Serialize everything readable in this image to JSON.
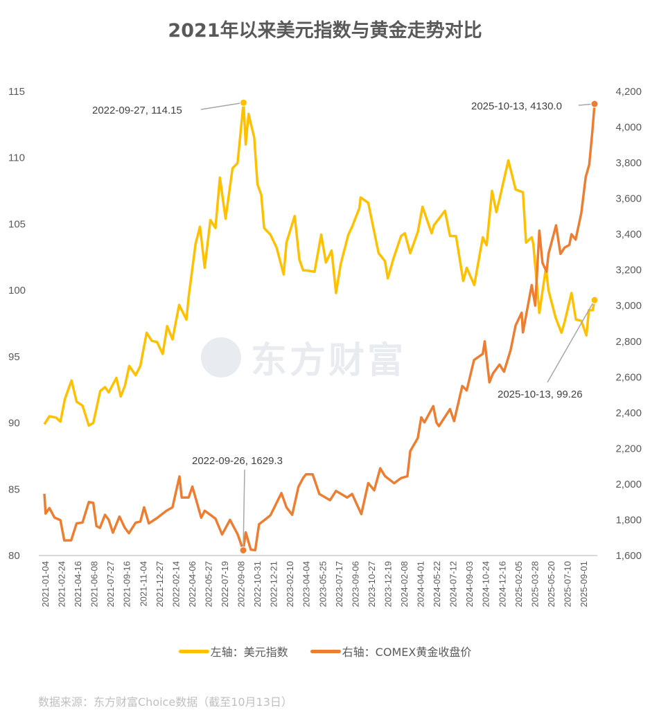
{
  "chart_data": {
    "type": "line",
    "title": "2021年以来美元指数与黄金走势对比",
    "source": "数据来源：东方财富Choice数据（截至10月13日）",
    "watermark": "东方财富",
    "colors": {
      "dxy": "#FFC000",
      "gold": "#ED7D31",
      "axis": "#d9d9d9"
    },
    "left_axis": {
      "ylim": [
        80,
        115
      ],
      "ticks": [
        "80",
        "85",
        "90",
        "95",
        "100",
        "105",
        "110",
        "115"
      ]
    },
    "right_axis": {
      "ylim": [
        1600,
        4200
      ],
      "ticks": [
        "1,600",
        "1,800",
        "2,000",
        "2,200",
        "2,400",
        "2,600",
        "2,800",
        "3,000",
        "3,200",
        "3,400",
        "3,600",
        "3,800",
        "4,000",
        "4,200"
      ]
    },
    "x_range": [
      "2021-01-04",
      "2025-10-13"
    ],
    "x_tick_labels": [
      "2021-01-04",
      "2021-02-24",
      "2021-04-16",
      "2021-06-08",
      "2021-07-27",
      "2021-09-16",
      "2021-11-04",
      "2021-12-27",
      "2022-02-14",
      "2022-04-06",
      "2022-05-27",
      "2022-07-19",
      "2022-09-08",
      "2022-10-31",
      "2022-12-21",
      "2023-02-10",
      "2023-04-04",
      "2023-05-25",
      "2023-07-17",
      "2023-09-06",
      "2023-10-27",
      "2023-12-19",
      "2024-02-08",
      "2024-04-01",
      "2024-05-22",
      "2024-07-12",
      "2024-09-03",
      "2024-10-24",
      "2024-12-16",
      "2025-02-05",
      "2025-03-28",
      "2025-05-20",
      "2025-07-10",
      "2025-09-01"
    ],
    "legend": [
      {
        "label": "左轴：美元指数",
        "color": "#FFC000"
      },
      {
        "label": "右轴：COMEX黄金收盘价",
        "color": "#ED7D31"
      }
    ],
    "series": [
      {
        "name": "美元指数",
        "axis": "left",
        "points": [
          [
            "2021-01-04",
            89.9
          ],
          [
            "2021-01-20",
            90.5
          ],
          [
            "2021-02-10",
            90.4
          ],
          [
            "2021-02-24",
            90.1
          ],
          [
            "2021-03-10",
            91.8
          ],
          [
            "2021-03-31",
            93.2
          ],
          [
            "2021-04-16",
            91.6
          ],
          [
            "2021-05-05",
            91.3
          ],
          [
            "2021-05-25",
            89.8
          ],
          [
            "2021-06-08",
            90.0
          ],
          [
            "2021-06-30",
            92.4
          ],
          [
            "2021-07-15",
            92.7
          ],
          [
            "2021-07-27",
            92.3
          ],
          [
            "2021-08-20",
            93.4
          ],
          [
            "2021-09-03",
            92.0
          ],
          [
            "2021-09-16",
            92.8
          ],
          [
            "2021-09-30",
            94.3
          ],
          [
            "2021-10-20",
            93.6
          ],
          [
            "2021-11-04",
            94.3
          ],
          [
            "2021-11-24",
            96.8
          ],
          [
            "2021-12-10",
            96.2
          ],
          [
            "2021-12-27",
            96.1
          ],
          [
            "2022-01-14",
            95.2
          ],
          [
            "2022-01-28",
            97.3
          ],
          [
            "2022-02-14",
            96.3
          ],
          [
            "2022-03-07",
            98.9
          ],
          [
            "2022-03-30",
            97.8
          ],
          [
            "2022-04-06",
            99.5
          ],
          [
            "2022-04-28",
            103.5
          ],
          [
            "2022-05-12",
            104.8
          ],
          [
            "2022-05-27",
            101.7
          ],
          [
            "2022-06-14",
            105.3
          ],
          [
            "2022-06-30",
            104.7
          ],
          [
            "2022-07-14",
            108.5
          ],
          [
            "2022-08-01",
            105.4
          ],
          [
            "2022-08-23",
            109.2
          ],
          [
            "2022-09-08",
            109.6
          ],
          [
            "2022-09-27",
            114.15
          ],
          [
            "2022-10-04",
            111.0
          ],
          [
            "2022-10-13",
            113.3
          ],
          [
            "2022-10-31",
            111.5
          ],
          [
            "2022-11-10",
            108.0
          ],
          [
            "2022-11-22",
            107.2
          ],
          [
            "2022-12-01",
            104.7
          ],
          [
            "2022-12-21",
            104.2
          ],
          [
            "2023-01-10",
            103.2
          ],
          [
            "2023-02-01",
            101.2
          ],
          [
            "2023-02-10",
            103.6
          ],
          [
            "2023-03-08",
            105.6
          ],
          [
            "2023-03-23",
            102.3
          ],
          [
            "2023-04-04",
            101.5
          ],
          [
            "2023-04-14",
            101.5
          ],
          [
            "2023-05-10",
            101.4
          ],
          [
            "2023-05-31",
            104.2
          ],
          [
            "2023-06-15",
            102.1
          ],
          [
            "2023-07-03",
            103.0
          ],
          [
            "2023-07-17",
            99.8
          ],
          [
            "2023-08-01",
            102.0
          ],
          [
            "2023-08-25",
            104.2
          ],
          [
            "2023-09-06",
            104.8
          ],
          [
            "2023-09-29",
            106.2
          ],
          [
            "2023-10-03",
            107.0
          ],
          [
            "2023-10-27",
            106.6
          ],
          [
            "2023-11-15",
            104.4
          ],
          [
            "2023-11-29",
            102.8
          ],
          [
            "2023-12-19",
            102.2
          ],
          [
            "2023-12-28",
            100.9
          ],
          [
            "2024-01-15",
            102.4
          ],
          [
            "2024-02-08",
            104.1
          ],
          [
            "2024-02-20",
            104.3
          ],
          [
            "2024-03-08",
            102.8
          ],
          [
            "2024-04-01",
            104.4
          ],
          [
            "2024-04-16",
            106.3
          ],
          [
            "2024-05-15",
            104.3
          ],
          [
            "2024-05-22",
            104.9
          ],
          [
            "2024-06-26",
            106.0
          ],
          [
            "2024-07-12",
            104.1
          ],
          [
            "2024-07-31",
            104.1
          ],
          [
            "2024-08-23",
            100.7
          ],
          [
            "2024-09-03",
            101.7
          ],
          [
            "2024-09-27",
            100.4
          ],
          [
            "2024-10-24",
            104.0
          ],
          [
            "2024-11-05",
            103.4
          ],
          [
            "2024-11-22",
            107.5
          ],
          [
            "2024-12-06",
            105.9
          ],
          [
            "2024-12-16",
            106.9
          ],
          [
            "2025-01-13",
            109.8
          ],
          [
            "2025-02-05",
            107.6
          ],
          [
            "2025-02-28",
            107.4
          ],
          [
            "2025-03-10",
            103.6
          ],
          [
            "2025-03-28",
            104.0
          ],
          [
            "2025-04-02",
            103.5
          ],
          [
            "2025-04-21",
            98.3
          ],
          [
            "2025-05-12",
            101.7
          ],
          [
            "2025-05-20",
            100.0
          ],
          [
            "2025-06-12",
            97.9
          ],
          [
            "2025-06-30",
            96.8
          ],
          [
            "2025-07-10",
            97.6
          ],
          [
            "2025-08-01",
            99.8
          ],
          [
            "2025-08-15",
            97.8
          ],
          [
            "2025-09-01",
            97.7
          ],
          [
            "2025-09-17",
            96.6
          ],
          [
            "2025-09-25",
            98.5
          ],
          [
            "2025-10-07",
            98.5
          ],
          [
            "2025-10-13",
            99.26
          ]
        ]
      },
      {
        "name": "COMEX黄金收盘价",
        "axis": "right",
        "points": [
          [
            "2021-01-04",
            1946
          ],
          [
            "2021-01-08",
            1835
          ],
          [
            "2021-01-20",
            1866
          ],
          [
            "2021-02-05",
            1813
          ],
          [
            "2021-02-24",
            1798
          ],
          [
            "2021-03-08",
            1685
          ],
          [
            "2021-03-30",
            1685
          ],
          [
            "2021-04-16",
            1780
          ],
          [
            "2021-05-05",
            1785
          ],
          [
            "2021-05-25",
            1900
          ],
          [
            "2021-06-08",
            1895
          ],
          [
            "2021-06-18",
            1765
          ],
          [
            "2021-06-29",
            1755
          ],
          [
            "2021-07-15",
            1828
          ],
          [
            "2021-07-27",
            1800
          ],
          [
            "2021-08-09",
            1728
          ],
          [
            "2021-08-30",
            1818
          ],
          [
            "2021-09-16",
            1755
          ],
          [
            "2021-09-29",
            1725
          ],
          [
            "2021-10-20",
            1784
          ],
          [
            "2021-11-04",
            1790
          ],
          [
            "2021-11-16",
            1870
          ],
          [
            "2021-12-01",
            1780
          ],
          [
            "2021-12-27",
            1810
          ],
          [
            "2022-01-25",
            1850
          ],
          [
            "2022-02-14",
            1870
          ],
          [
            "2022-03-08",
            2043
          ],
          [
            "2022-03-15",
            1925
          ],
          [
            "2022-04-06",
            1925
          ],
          [
            "2022-04-18",
            1986
          ],
          [
            "2022-05-16",
            1812
          ],
          [
            "2022-05-27",
            1851
          ],
          [
            "2022-06-30",
            1807
          ],
          [
            "2022-07-21",
            1718
          ],
          [
            "2022-08-15",
            1800
          ],
          [
            "2022-09-08",
            1720
          ],
          [
            "2022-09-26",
            1629.3
          ],
          [
            "2022-10-04",
            1730
          ],
          [
            "2022-10-20",
            1633
          ],
          [
            "2022-11-03",
            1630
          ],
          [
            "2022-11-15",
            1775
          ],
          [
            "2022-12-21",
            1825
          ],
          [
            "2023-01-25",
            1950
          ],
          [
            "2023-02-10",
            1870
          ],
          [
            "2023-02-28",
            1828
          ],
          [
            "2023-03-20",
            1985
          ],
          [
            "2023-04-04",
            2035
          ],
          [
            "2023-04-13",
            2055
          ],
          [
            "2023-05-04",
            2055
          ],
          [
            "2023-05-25",
            1945
          ],
          [
            "2023-06-28",
            1910
          ],
          [
            "2023-07-17",
            1962
          ],
          [
            "2023-08-21",
            1925
          ],
          [
            "2023-09-06",
            1945
          ],
          [
            "2023-10-05",
            1832
          ],
          [
            "2023-10-27",
            2006
          ],
          [
            "2023-11-15",
            1965
          ],
          [
            "2023-12-04",
            2089
          ],
          [
            "2023-12-19",
            2045
          ],
          [
            "2024-01-17",
            2005
          ],
          [
            "2024-02-08",
            2034
          ],
          [
            "2024-02-28",
            2044
          ],
          [
            "2024-03-08",
            2185
          ],
          [
            "2024-04-01",
            2258
          ],
          [
            "2024-04-12",
            2374
          ],
          [
            "2024-04-22",
            2346
          ],
          [
            "2024-05-20",
            2437
          ],
          [
            "2024-05-30",
            2346
          ],
          [
            "2024-06-07",
            2325
          ],
          [
            "2024-07-12",
            2420
          ],
          [
            "2024-07-25",
            2353
          ],
          [
            "2024-08-20",
            2550
          ],
          [
            "2024-09-03",
            2525
          ],
          [
            "2024-09-26",
            2695
          ],
          [
            "2024-10-24",
            2730
          ],
          [
            "2024-10-30",
            2800
          ],
          [
            "2024-11-14",
            2570
          ],
          [
            "2024-11-25",
            2620
          ],
          [
            "2024-12-16",
            2670
          ],
          [
            "2024-12-30",
            2630
          ],
          [
            "2025-01-20",
            2750
          ],
          [
            "2025-02-05",
            2890
          ],
          [
            "2025-02-24",
            2960
          ],
          [
            "2025-02-28",
            2850
          ],
          [
            "2025-03-28",
            3115
          ],
          [
            "2025-04-08",
            3000
          ],
          [
            "2025-04-21",
            3420
          ],
          [
            "2025-05-01",
            3240
          ],
          [
            "2025-05-14",
            3190
          ],
          [
            "2025-05-20",
            3290
          ],
          [
            "2025-06-13",
            3450
          ],
          [
            "2025-06-27",
            3290
          ],
          [
            "2025-07-10",
            3325
          ],
          [
            "2025-07-25",
            3340
          ],
          [
            "2025-08-01",
            3400
          ],
          [
            "2025-08-14",
            3370
          ],
          [
            "2025-09-01",
            3520
          ],
          [
            "2025-09-15",
            3720
          ],
          [
            "2025-09-26",
            3790
          ],
          [
            "2025-10-06",
            3975
          ],
          [
            "2025-10-13",
            4130.0
          ]
        ]
      }
    ],
    "annotations": [
      {
        "label": "2022-09-27, 114.15",
        "date": "2022-09-27",
        "value": 114.15,
        "axis": "left"
      },
      {
        "label": "2022-09-26, 1629.3",
        "date": "2022-09-26",
        "value": 1629.3,
        "axis": "right"
      },
      {
        "label": "2025-10-13, 4130.0",
        "date": "2025-10-13",
        "value": 4130.0,
        "axis": "right"
      },
      {
        "label": "2025-10-13, 99.26",
        "date": "2025-10-13",
        "value": 99.26,
        "axis": "left"
      }
    ]
  }
}
